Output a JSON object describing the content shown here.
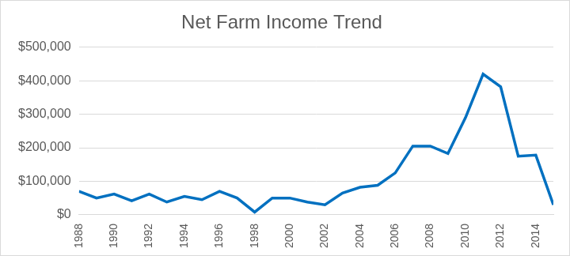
{
  "chart_data": {
    "type": "line",
    "title": "Net Farm Income Trend",
    "categories": [
      "1988",
      null,
      "1990",
      null,
      "1992",
      null,
      "1994",
      null,
      "1996",
      null,
      "1998",
      null,
      "2000",
      null,
      "2002",
      null,
      "2004",
      null,
      "2006",
      null,
      "2008",
      null,
      "2010",
      null,
      "2012",
      null,
      "2014",
      null
    ],
    "values": [
      70000,
      50000,
      62000,
      42000,
      62000,
      38000,
      55000,
      45000,
      70000,
      50000,
      8000,
      50000,
      50000,
      38000,
      30000,
      65000,
      82000,
      88000,
      125000,
      205000,
      205000,
      183000,
      290000,
      420000,
      382000,
      175000,
      178000,
      30000
    ],
    "color": "#0070c0",
    "ylim": [
      0,
      500000
    ],
    "yticks": [
      {
        "value": 0,
        "label": "$0"
      },
      {
        "value": 100000,
        "label": "$100,000"
      },
      {
        "value": 200000,
        "label": "$200,000"
      },
      {
        "value": 300000,
        "label": "$300,000"
      },
      {
        "value": 400000,
        "label": "$400,000"
      },
      {
        "value": 500000,
        "label": "$500,000"
      }
    ],
    "grid": true
  }
}
